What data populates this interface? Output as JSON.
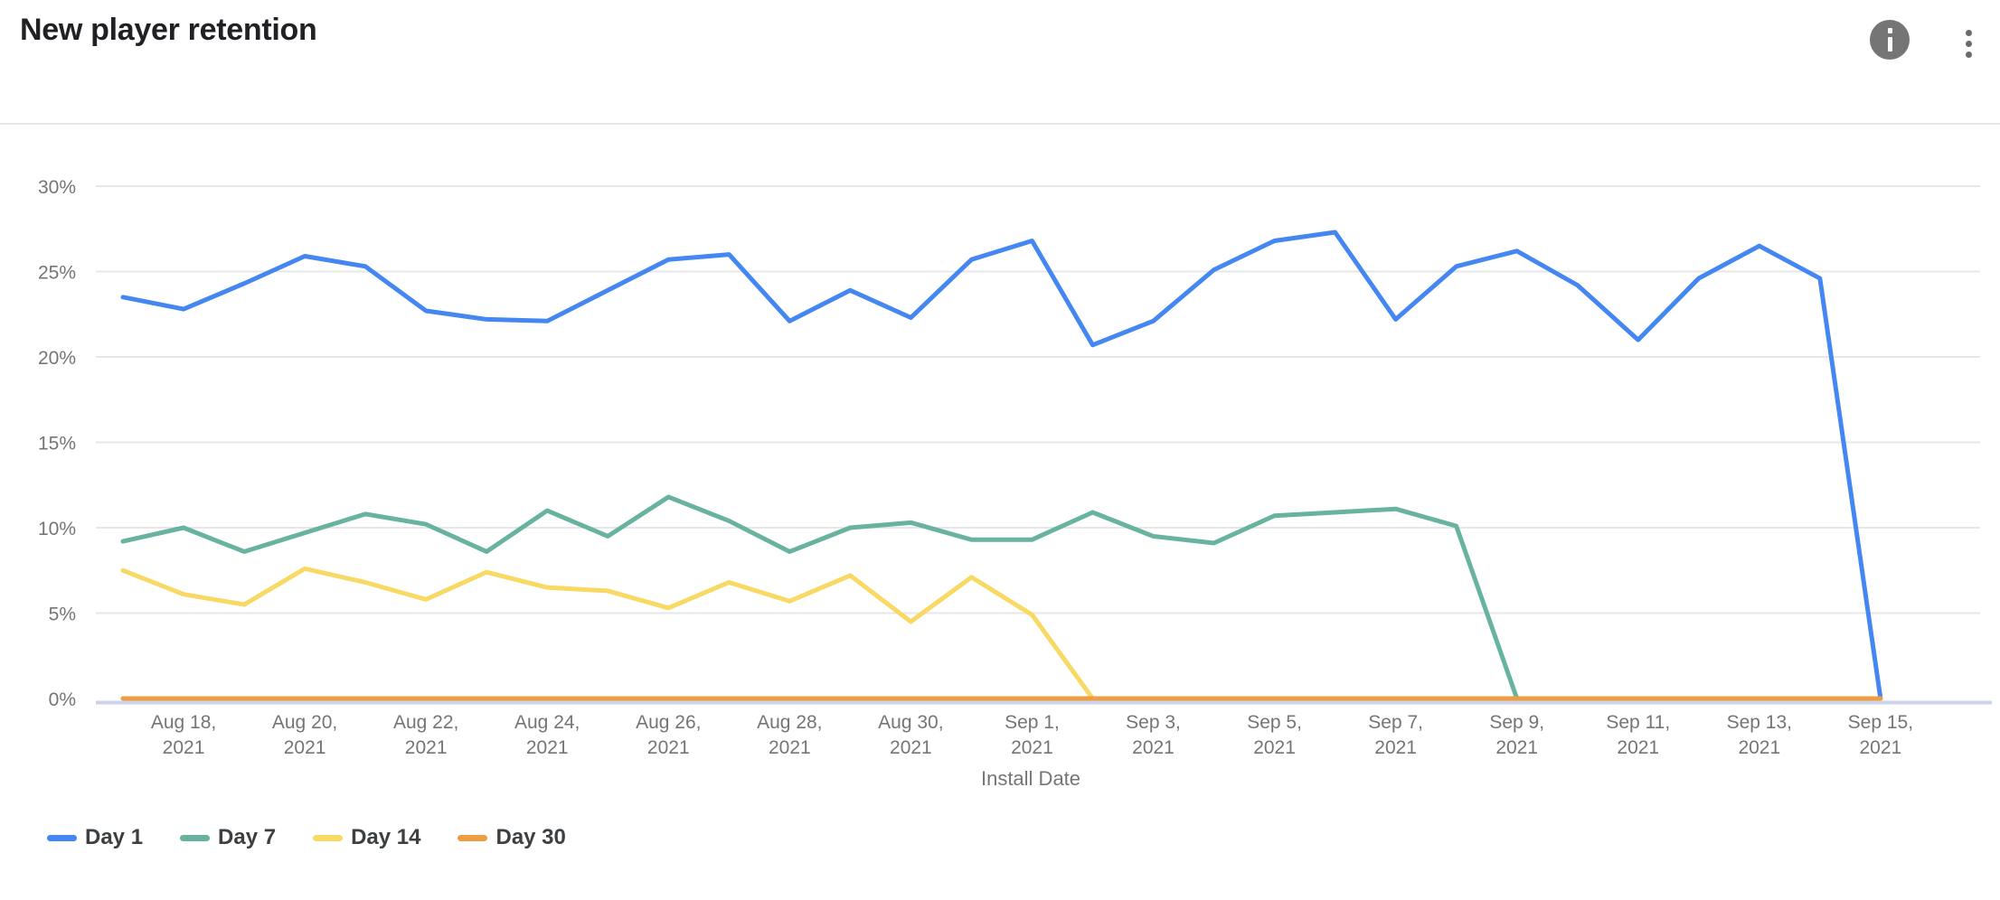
{
  "header": {
    "title": "New player retention"
  },
  "chart_data": {
    "type": "line",
    "title": "New player retention",
    "xlabel": "Install Date",
    "ylabel": "",
    "y_unit": "%",
    "ylim": [
      0,
      30
    ],
    "yticks": [
      0,
      5,
      10,
      15,
      20,
      25,
      30
    ],
    "grid": true,
    "legend_position": "bottom-left",
    "year": "2021",
    "categories": [
      "Aug 17",
      "Aug 18",
      "Aug 19",
      "Aug 20",
      "Aug 21",
      "Aug 22",
      "Aug 23",
      "Aug 24",
      "Aug 25",
      "Aug 26",
      "Aug 27",
      "Aug 28",
      "Aug 29",
      "Aug 30",
      "Aug 31",
      "Sep 1",
      "Sep 2",
      "Sep 3",
      "Sep 4",
      "Sep 5",
      "Sep 6",
      "Sep 7",
      "Sep 8",
      "Sep 9",
      "Sep 10",
      "Sep 11",
      "Sep 12",
      "Sep 13",
      "Sep 14",
      "Sep 15"
    ],
    "x_ticks": [
      "Aug 18, 2021",
      "Aug 20, 2021",
      "Aug 22, 2021",
      "Aug 24, 2021",
      "Aug 26, 2021",
      "Aug 28, 2021",
      "Aug 30, 2021",
      "Sep 1, 2021",
      "Sep 3, 2021",
      "Sep 5, 2021",
      "Sep 7, 2021",
      "Sep 9, 2021",
      "Sep 11, 2021",
      "Sep 13, 2021",
      "Sep 15, 2021"
    ],
    "series": [
      {
        "name": "Day 1",
        "color": "#4486f2",
        "values": [
          23.5,
          22.8,
          24.3,
          25.9,
          25.3,
          22.7,
          22.2,
          22.1,
          23.9,
          25.7,
          26.0,
          22.1,
          23.9,
          22.3,
          25.7,
          26.8,
          20.7,
          22.1,
          25.1,
          26.8,
          27.3,
          22.2,
          25.3,
          26.2,
          24.2,
          21.0,
          24.6,
          26.5,
          24.6,
          0
        ]
      },
      {
        "name": "Day 7",
        "color": "#68b2a0",
        "values": [
          9.2,
          10.0,
          8.6,
          9.7,
          10.8,
          10.2,
          8.6,
          11.0,
          9.5,
          11.8,
          10.4,
          8.6,
          10.0,
          10.3,
          9.3,
          9.3,
          10.9,
          9.5,
          9.1,
          10.7,
          10.9,
          11.1,
          10.1,
          0,
          0,
          0,
          0,
          0,
          0,
          0
        ]
      },
      {
        "name": "Day 14",
        "color": "#f8d964",
        "values": [
          7.5,
          6.1,
          5.5,
          7.6,
          6.8,
          5.8,
          7.4,
          6.5,
          6.3,
          5.3,
          6.8,
          5.7,
          7.2,
          4.5,
          7.1,
          4.9,
          0,
          0,
          0,
          0,
          0,
          0,
          0,
          0,
          0,
          0,
          0,
          0,
          0,
          0
        ]
      },
      {
        "name": "Day 30",
        "color": "#ef9d43",
        "values": [
          0,
          0,
          0,
          0,
          0,
          0,
          0,
          0,
          0,
          0,
          0,
          0,
          0,
          0,
          0,
          0,
          0,
          0,
          0,
          0,
          0,
          0,
          0,
          0,
          0,
          0,
          0,
          0,
          0,
          0
        ]
      }
    ]
  },
  "colors": {
    "gridline": "#e7e7e7",
    "baseline": "#ccd3ea",
    "axis_text": "#757575",
    "legend_text": "#3c4043",
    "title_text": "#202124",
    "divider": "#e5e5e5",
    "info_icon_bg": "#757575",
    "menu_dots": "#6b6b6b"
  }
}
